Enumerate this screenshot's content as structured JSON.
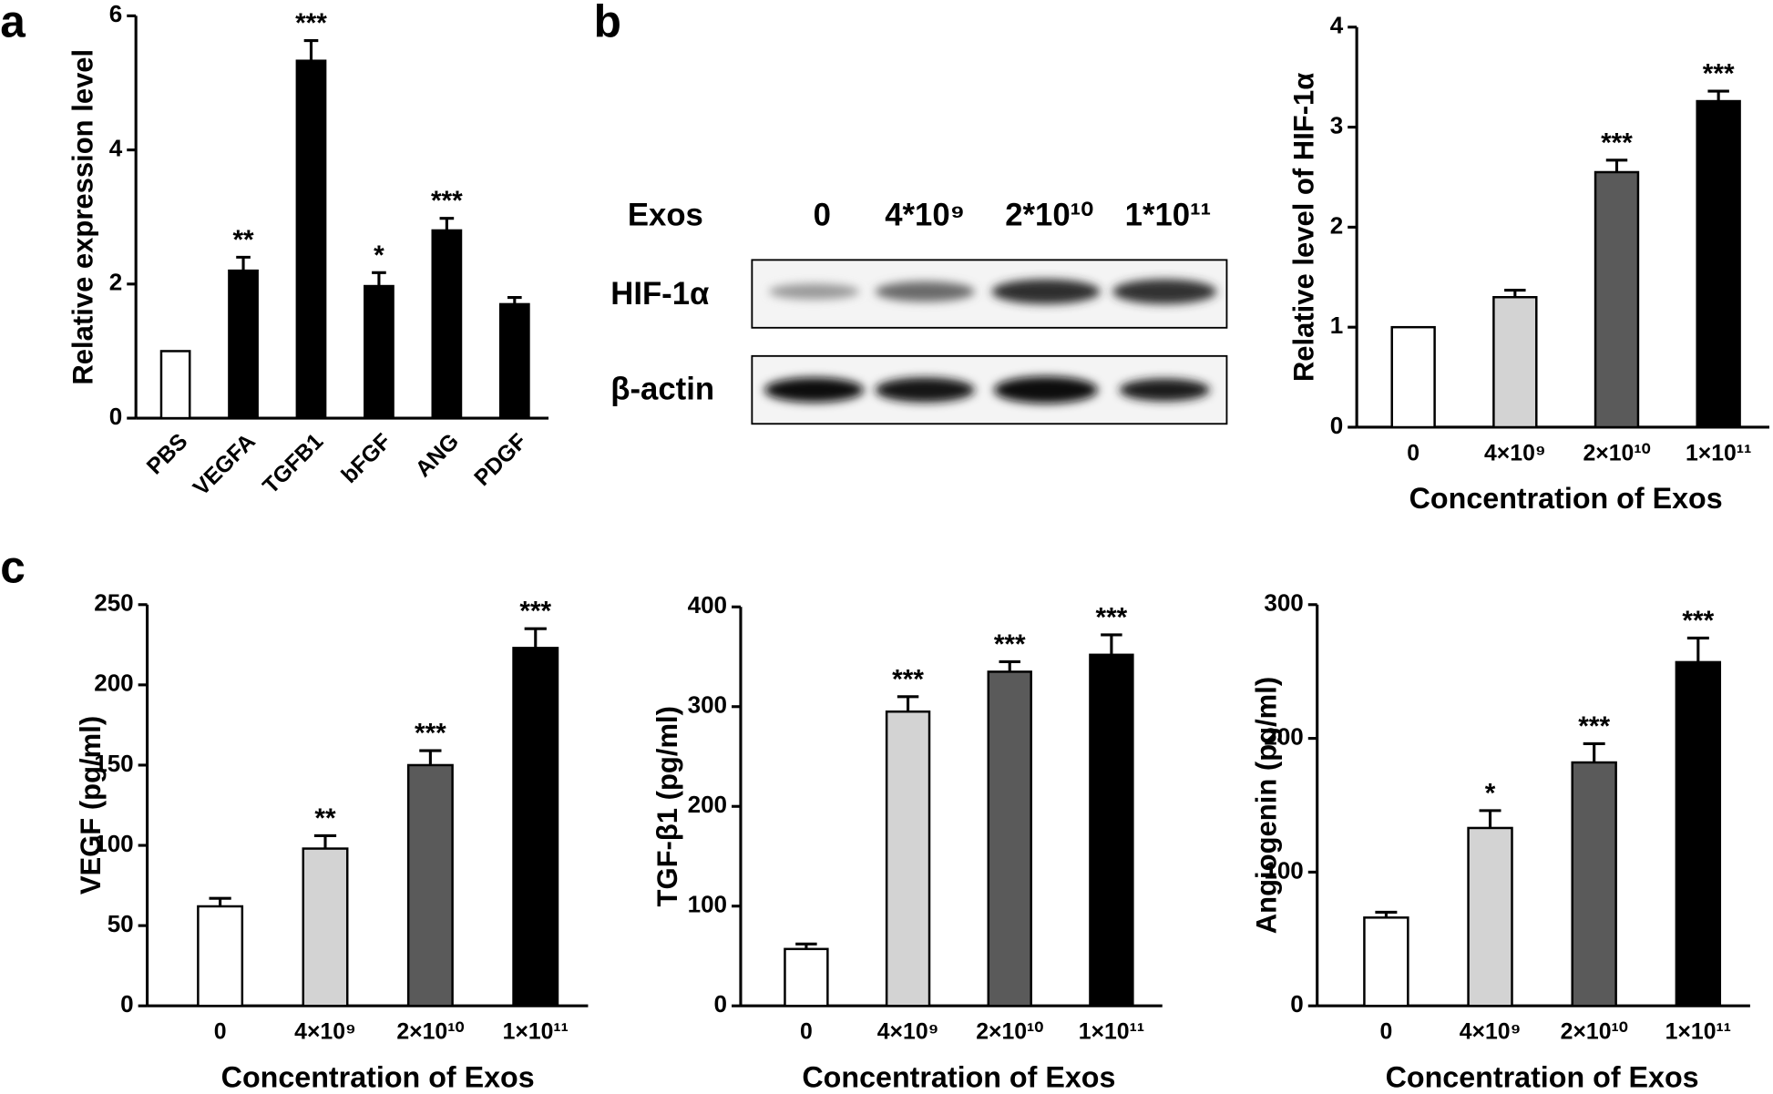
{
  "panel_labels": [
    "a",
    "b",
    "c"
  ],
  "blot": {
    "row_header": "Exos",
    "lanes": [
      "0",
      "4*10⁹",
      "2*10¹⁰",
      "1*10¹¹"
    ],
    "rows": [
      "HIF-1α",
      "β-actin"
    ]
  },
  "chart_data": [
    {
      "type": "bar",
      "ylabel": "Relative expression level",
      "categories": [
        "PBS",
        "VEGFA",
        "TGFB1",
        "bFGF",
        "ANG",
        "PDGF"
      ],
      "values": [
        1,
        2.2,
        5.33,
        1.97,
        2.8,
        1.7
      ],
      "errors": [
        null,
        0.2,
        0.3,
        0.2,
        0.18,
        0.1
      ],
      "annotations": [
        null,
        "**",
        "***",
        "*",
        "***",
        null
      ],
      "colors": [
        "#ffffff",
        "#000000",
        "#000000",
        "#000000",
        "#000000",
        "#000000"
      ],
      "ylim": [
        0,
        6
      ],
      "yticks": [
        0,
        2,
        4,
        6
      ]
    },
    {
      "type": "bar",
      "ylabel": "Relative level of HIF-1α",
      "xlabel": "Concentration of Exos",
      "categories": [
        "0",
        "4×10⁹",
        "2×10¹⁰",
        "1×10¹¹"
      ],
      "values": [
        1,
        1.3,
        2.55,
        3.26
      ],
      "errors": [
        null,
        0.07,
        0.12,
        0.1
      ],
      "annotations": [
        null,
        null,
        "***",
        "***"
      ],
      "colors": [
        "#ffffff",
        "#d3d3d3",
        "#5a5a5a",
        "#000000"
      ],
      "ylim": [
        0,
        4
      ],
      "yticks": [
        0,
        1,
        2,
        3,
        4
      ]
    },
    {
      "type": "bar",
      "ylabel": "VEGF (pg/ml)",
      "xlabel": "Concentration of Exos",
      "categories": [
        "0",
        "4×10⁹",
        "2×10¹⁰",
        "1×10¹¹"
      ],
      "values": [
        62,
        98,
        150,
        223
      ],
      "errors": [
        5,
        8,
        9,
        12
      ],
      "annotations": [
        null,
        "**",
        "***",
        "***"
      ],
      "colors": [
        "#ffffff",
        "#d3d3d3",
        "#5a5a5a",
        "#000000"
      ],
      "ylim": [
        0,
        250
      ],
      "yticks": [
        0,
        50,
        100,
        150,
        200,
        250
      ]
    },
    {
      "type": "bar",
      "ylabel": "TGF-β1 (pg/ml)",
      "xlabel": "Concentration of Exos",
      "categories": [
        "0",
        "4×10⁹",
        "2×10¹⁰",
        "1×10¹¹"
      ],
      "values": [
        57,
        295,
        335,
        352
      ],
      "errors": [
        5,
        15,
        10,
        20
      ],
      "annotations": [
        null,
        "***",
        "***",
        "***"
      ],
      "colors": [
        "#ffffff",
        "#d3d3d3",
        "#5a5a5a",
        "#000000"
      ],
      "ylim": [
        0,
        400
      ],
      "yticks": [
        0,
        100,
        200,
        300,
        400
      ]
    },
    {
      "type": "bar",
      "ylabel": "Angiogenin (pg/ml)",
      "xlabel": "Concentration of Exos",
      "categories": [
        "0",
        "4×10⁹",
        "2×10¹⁰",
        "1×10¹¹"
      ],
      "values": [
        66,
        133,
        182,
        257
      ],
      "errors": [
        4,
        13,
        14,
        18
      ],
      "annotations": [
        null,
        "*",
        "***",
        "***"
      ],
      "colors": [
        "#ffffff",
        "#d3d3d3",
        "#5a5a5a",
        "#000000"
      ],
      "ylim": [
        0,
        300
      ],
      "yticks": [
        0,
        100,
        200,
        300
      ]
    }
  ]
}
